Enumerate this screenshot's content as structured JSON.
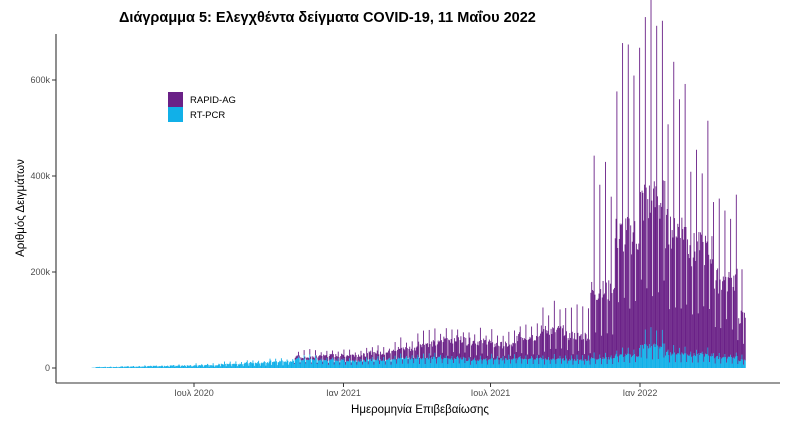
{
  "chart_data": {
    "type": "bar",
    "stacked": true,
    "title": "Διάγραμμα 5: Ελεγχθέντα δείγματα COVID-19, 11 Μαΐου 2022",
    "xlabel": "Ημερομηνία Επιβεβαίωσης",
    "ylabel": "Αριθμός Δειγμάτων",
    "x_range": [
      "2020-02-26",
      "2022-05-10"
    ],
    "ylim": [
      0,
      690000
    ],
    "y_ticks": [
      0,
      200000,
      400000,
      600000
    ],
    "y_tick_labels": [
      "0",
      "200k",
      "400k",
      "600k"
    ],
    "x_ticks": [
      "2020-07-01",
      "2021-01-01",
      "2021-07-01",
      "2022-01-01"
    ],
    "x_tick_labels": [
      "Ιουλ 2020",
      "Ιαν 2021",
      "Ιουλ 2021",
      "Ιαν 2022"
    ],
    "grid": false,
    "legend": {
      "placement": "top-left",
      "entries": [
        {
          "name": "RAPID-AG",
          "color": "#6a2187"
        },
        {
          "name": "RT-PCR",
          "color": "#11b0e8"
        }
      ]
    },
    "granularity": "daily values summarized by month: typical weekday count and weekly peak (approximate, read off the chart)",
    "series": [
      {
        "name": "RT-PCR",
        "color": "#11b0e8",
        "months": [
          "2020-02",
          "2020-03",
          "2020-04",
          "2020-05",
          "2020-06",
          "2020-07",
          "2020-08",
          "2020-09",
          "2020-10",
          "2020-11",
          "2020-12",
          "2021-01",
          "2021-02",
          "2021-03",
          "2021-04",
          "2021-05",
          "2021-06",
          "2021-07",
          "2021-08",
          "2021-09",
          "2021-10",
          "2021-11",
          "2021-12",
          "2022-01",
          "2022-02",
          "2022-03",
          "2022-04",
          "2022-05"
        ],
        "typical": [
          500,
          2000,
          3000,
          4000,
          5000,
          6000,
          8000,
          11000,
          14000,
          18000,
          16000,
          15000,
          17000,
          20000,
          21000,
          20000,
          17000,
          18000,
          20000,
          18000,
          17000,
          20000,
          26000,
          45000,
          30000,
          27000,
          22000,
          16000
        ],
        "peak": [
          800,
          2500,
          4000,
          5000,
          7000,
          9000,
          12000,
          15000,
          20000,
          25000,
          22000,
          20000,
          24000,
          27000,
          28000,
          27000,
          24000,
          26000,
          28000,
          26000,
          25000,
          30000,
          40000,
          80000,
          42000,
          38000,
          32000,
          25000
        ]
      },
      {
        "name": "RAPID-AG",
        "color": "#6a2187",
        "months": [
          "2020-02",
          "2020-03",
          "2020-04",
          "2020-05",
          "2020-06",
          "2020-07",
          "2020-08",
          "2020-09",
          "2020-10",
          "2020-11",
          "2020-12",
          "2021-01",
          "2021-02",
          "2021-03",
          "2021-04",
          "2021-05",
          "2021-06",
          "2021-07",
          "2021-08",
          "2021-09",
          "2021-10",
          "2021-11",
          "2021-12",
          "2022-01",
          "2022-02",
          "2022-03",
          "2022-04",
          "2022-05"
        ],
        "typical": [
          0,
          0,
          0,
          0,
          0,
          0,
          0,
          0,
          0,
          5000,
          10000,
          12000,
          15000,
          20000,
          30000,
          40000,
          38000,
          30000,
          45000,
          60000,
          50000,
          140000,
          250000,
          300000,
          260000,
          220000,
          160000,
          90000
        ],
        "peak": [
          0,
          0,
          0,
          0,
          0,
          0,
          0,
          0,
          0,
          10000,
          15000,
          18000,
          22000,
          30000,
          45000,
          60000,
          55000,
          45000,
          70000,
          100000,
          95000,
          380000,
          600000,
          650000,
          520000,
          420000,
          330000,
          160000
        ]
      }
    ]
  }
}
